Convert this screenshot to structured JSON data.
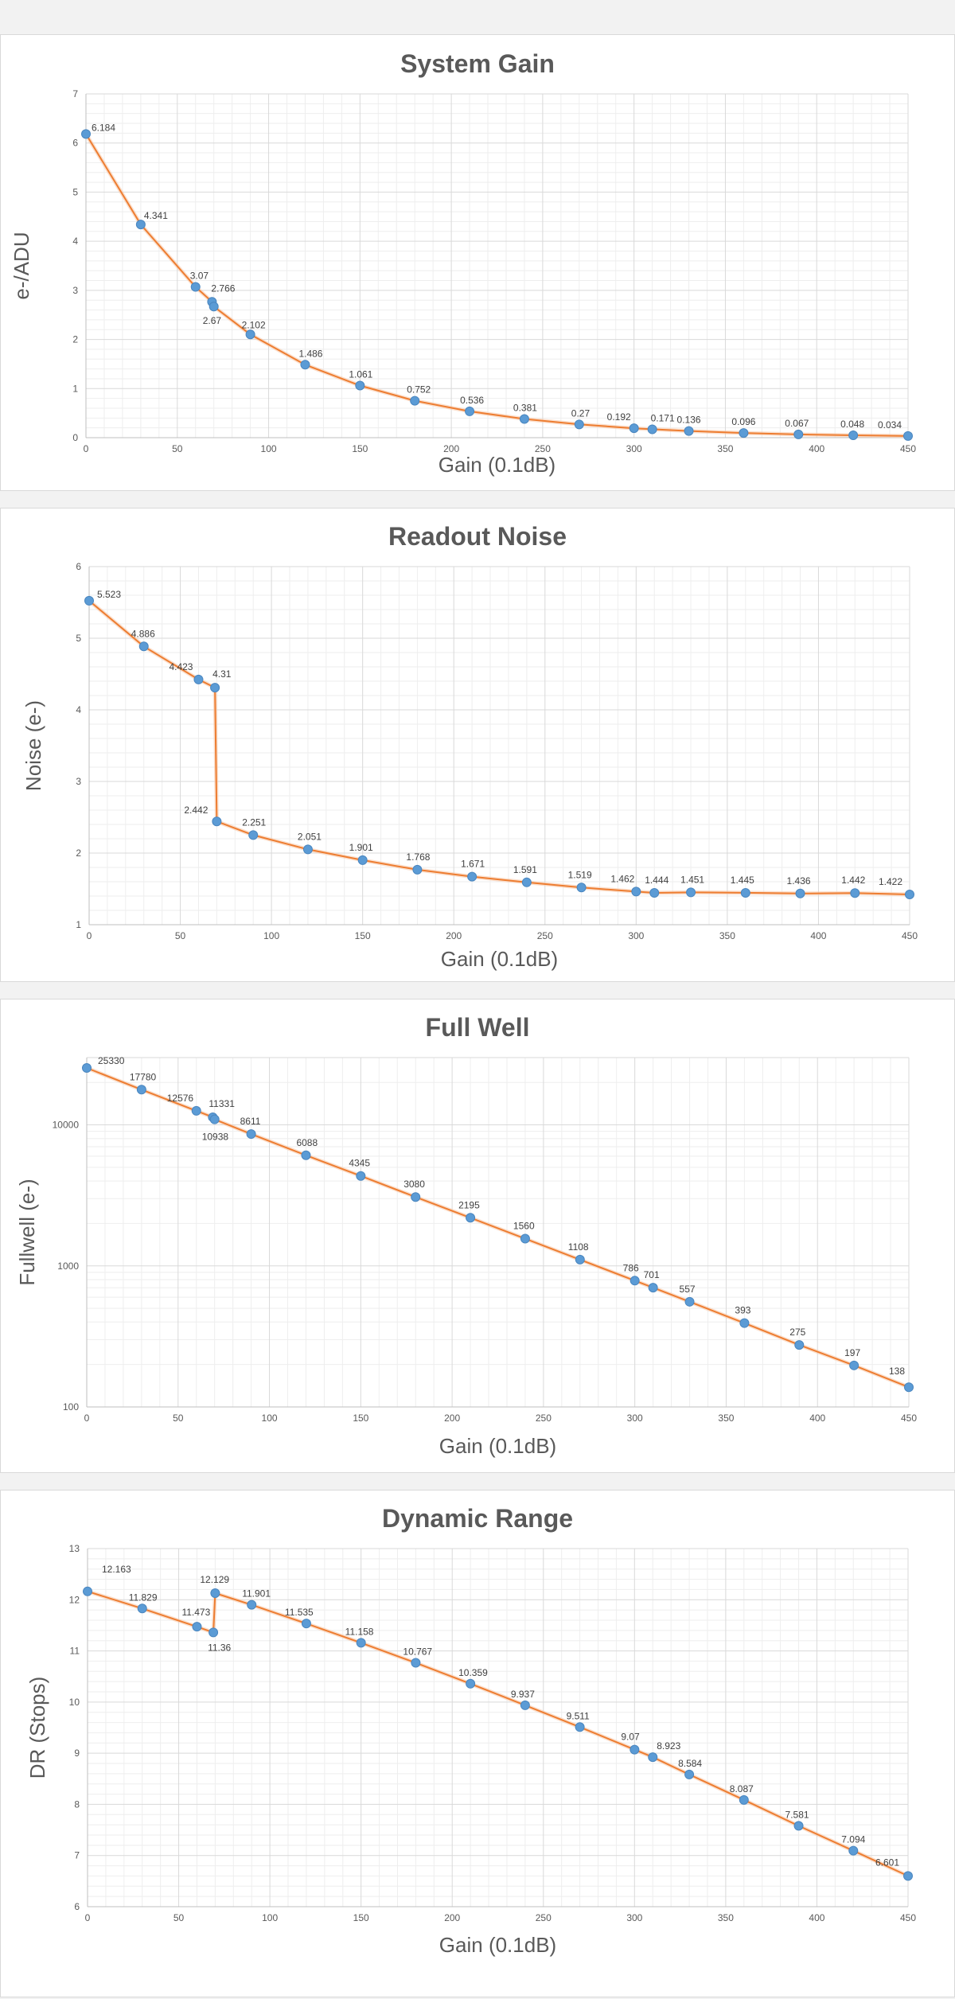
{
  "chart_data": [
    {
      "type": "line",
      "title": "System Gain",
      "xlabel": "Gain (0.1dB)",
      "ylabel": "e-/ADU",
      "xlim": [
        0,
        450
      ],
      "ylim": [
        0,
        7
      ],
      "yscale": "linear",
      "xticks": [
        0,
        50,
        100,
        150,
        200,
        250,
        300,
        350,
        400,
        450
      ],
      "yticks": [
        0,
        1,
        2,
        3,
        4,
        5,
        6,
        7
      ],
      "grid": true,
      "x": [
        0,
        30,
        60,
        69,
        70,
        90,
        120,
        150,
        180,
        210,
        240,
        270,
        300,
        310,
        330,
        360,
        390,
        420,
        450
      ],
      "series": [
        {
          "values": [
            6.184,
            4.341,
            3.07,
            2.766,
            2.67,
            2.102,
            1.486,
            1.061,
            0.752,
            0.536,
            0.381,
            0.27,
            0.192,
            0.171,
            0.136,
            0.096,
            0.067,
            0.048,
            0.034
          ],
          "labels": [
            "6.184",
            "4.341",
            "3.07",
            "2.766",
            "2.67",
            "2.102",
            "1.486",
            "1.061",
            "0.752",
            "0.536",
            "0.381",
            "0.27",
            "0.192",
            "0.171",
            "0.136",
            "0.096",
            "0.067",
            "0.048",
            "0.034"
          ]
        }
      ]
    },
    {
      "type": "line",
      "title": "Readout Noise",
      "xlabel": "Gain (0.1dB)",
      "ylabel": "Noise (e-)",
      "xlim": [
        0,
        450
      ],
      "ylim": [
        1,
        6
      ],
      "yscale": "linear",
      "xticks": [
        0,
        50,
        100,
        150,
        200,
        250,
        300,
        350,
        400,
        450
      ],
      "yticks": [
        1,
        2,
        3,
        4,
        5,
        6
      ],
      "grid": true,
      "x": [
        0,
        30,
        60,
        69,
        70,
        90,
        120,
        150,
        180,
        210,
        240,
        270,
        300,
        310,
        330,
        360,
        390,
        420,
        450
      ],
      "series": [
        {
          "values": [
            5.523,
            4.886,
            4.423,
            4.31,
            2.442,
            2.251,
            2.051,
            1.901,
            1.768,
            1.671,
            1.591,
            1.519,
            1.462,
            1.444,
            1.451,
            1.445,
            1.436,
            1.442,
            1.422
          ],
          "labels": [
            "5.523",
            "4.886",
            "4.423",
            "4.31",
            "2.442",
            "2.251",
            "2.051",
            "1.901",
            "1.768",
            "1.671",
            "1.591",
            "1.519",
            "1.462",
            "1.444",
            "1.451",
            "1.445",
            "1.436",
            "1.442",
            "1.422"
          ]
        }
      ]
    },
    {
      "type": "line",
      "title": "Full Well",
      "xlabel": "Gain (0.1dB)",
      "ylabel": "Fullwell (e-)",
      "xlim": [
        0,
        450
      ],
      "ylim": [
        100,
        30000
      ],
      "yscale": "log",
      "xticks": [
        0,
        50,
        100,
        150,
        200,
        250,
        300,
        350,
        400,
        450
      ],
      "yticks": [
        100,
        1000,
        10000
      ],
      "grid": true,
      "x": [
        0,
        30,
        60,
        69,
        70,
        90,
        120,
        150,
        180,
        210,
        240,
        270,
        300,
        310,
        330,
        360,
        390,
        420,
        450
      ],
      "series": [
        {
          "values": [
            25330,
            17780,
            12576,
            11331,
            10938,
            8611,
            6088,
            4345,
            3080,
            2195,
            1560,
            1108,
            786,
            701,
            557,
            393,
            275,
            197,
            138
          ],
          "labels": [
            "25330",
            "17780",
            "12576",
            "11331",
            "10938",
            "8611",
            "6088",
            "4345",
            "3080",
            "2195",
            "1560",
            "1108",
            "786",
            "701",
            "557",
            "393",
            "275",
            "197",
            "138"
          ]
        }
      ]
    },
    {
      "type": "line",
      "title": "Dynamic Range",
      "xlabel": "Gain (0.1dB)",
      "ylabel": "DR (Stops)",
      "xlim": [
        0,
        450
      ],
      "ylim": [
        6,
        13
      ],
      "yscale": "linear",
      "xticks": [
        0,
        50,
        100,
        150,
        200,
        250,
        300,
        350,
        400,
        450
      ],
      "yticks": [
        6,
        7,
        8,
        9,
        10,
        11,
        12,
        13
      ],
      "grid": true,
      "x": [
        0,
        30,
        60,
        69,
        70,
        90,
        120,
        150,
        180,
        210,
        240,
        270,
        300,
        310,
        330,
        360,
        390,
        420,
        450
      ],
      "series": [
        {
          "values": [
            12.163,
            11.829,
            11.473,
            11.36,
            12.129,
            11.901,
            11.535,
            11.158,
            10.767,
            10.359,
            9.937,
            9.511,
            9.07,
            8.923,
            8.584,
            8.087,
            7.581,
            7.094,
            6.601
          ],
          "labels": [
            "12.163",
            "11.829",
            "11.473",
            "11.36",
            "12.129",
            "11.901",
            "11.535",
            "11.158",
            "10.767",
            "10.359",
            "9.937",
            "9.511",
            "9.07",
            "8.923",
            "8.584",
            "8.087",
            "7.581",
            "7.094",
            "6.601"
          ]
        }
      ]
    }
  ]
}
